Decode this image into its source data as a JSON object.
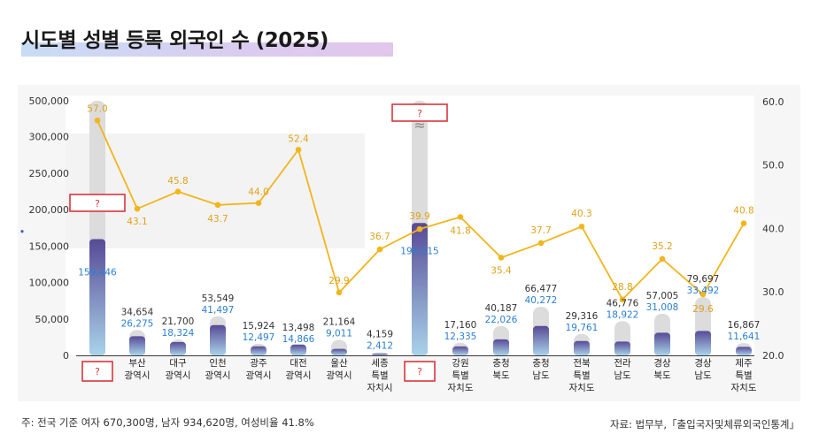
{
  "title": "시도별 성별 등록 외국인 수 (2025)",
  "footnote": "주: 전국 기준 여자 670,300명, 남자 934,620명, 여성비율 41.8%",
  "source": "자료: 법무부,「출입국자및체류외국인통계」",
  "colors": {
    "total_bar": "#dcdcdc",
    "female_bar_top": "#574a96",
    "female_bar_bottom": "#a9d3ea",
    "ratio_line": "#f2b51c",
    "ratio_label": "#e0a21a",
    "total_label": "#333333",
    "female_label": "#2a7fd0",
    "unknown_box": "#d9363e"
  },
  "chart_data": {
    "type": "bar",
    "left_axis_ticks": [
      "0",
      "50,000",
      "100,000",
      "150,000",
      "200,000",
      "250,000",
      "300,000",
      "500,000"
    ],
    "right_axis_ticks": [
      "20.0",
      "30.0",
      "40.0",
      "50.0",
      "60.0"
    ],
    "axis_break": "≈",
    "unknown_marker": "?",
    "categories": [
      "?",
      "부산\n광역시",
      "대구\n광역시",
      "인천\n광역시",
      "광주\n광역시",
      "대전\n광역시",
      "울산\n광역시",
      "세종\n특별\n자치시",
      "?",
      "강원\n특별\n자치도",
      "충청\n북도",
      "충청\n남도",
      "전북\n특별\n자치도",
      "전라\n남도",
      "경상\n북도",
      "경상\n남도",
      "제주\n특별\n자치도"
    ],
    "series": [
      {
        "values": [
          null,
          34654,
          21700,
          53549,
          15924,
          13498,
          21164,
          4159,
          null,
          17160,
          40187,
          66477,
          29316,
          46776,
          57005,
          79697,
          16867
        ],
        "labels": [
          "?",
          "34,654",
          "21,700",
          "53,549",
          "15,924",
          "13,498",
          "21,164",
          "4,159",
          "?",
          "17,160",
          "40,187",
          "66,477",
          "29,316",
          "46,776",
          "57,005",
          "79,697",
          "16,867"
        ]
      },
      {
        "values": [
          159446,
          26275,
          18324,
          41497,
          12497,
          14866,
          9011,
          2412,
          196515,
          12335,
          22026,
          40272,
          19761,
          18922,
          31008,
          33492,
          11641
        ],
        "labels": [
          "159,446",
          "26,275",
          "18,324",
          "41,497",
          "12,497",
          "14,866",
          "9,011",
          "2,412",
          "196,515",
          "12,335",
          "22,026",
          "40,272",
          "19,761",
          "18,922",
          "31,008",
          "33,492",
          "11,641"
        ]
      },
      {
        "values": [
          57.0,
          43.1,
          45.8,
          43.7,
          44.0,
          52.4,
          29.9,
          36.7,
          39.9,
          41.8,
          35.4,
          37.7,
          40.3,
          28.8,
          35.2,
          29.6,
          40.8
        ],
        "labels": [
          "57.0",
          "43.1",
          "45.8",
          "43.7",
          "44.0",
          "52.4",
          "29.9",
          "36.7",
          "39.9",
          "41.8",
          "35.4",
          "37.7",
          "40.3",
          "28.8",
          "35.2",
          "29.6",
          "40.8"
        ]
      }
    ],
    "left_ylim": [
      0,
      500000
    ],
    "right_ylim": [
      20.0,
      60.0
    ],
    "grid": false,
    "legend": "none"
  }
}
